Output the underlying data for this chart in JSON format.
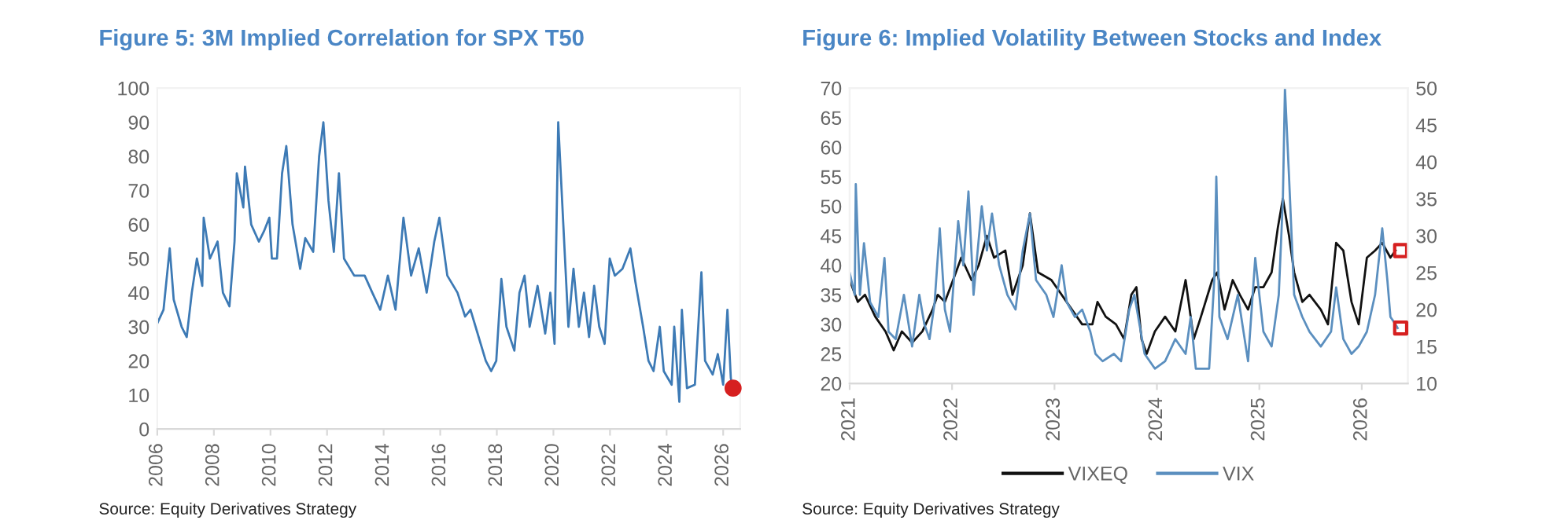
{
  "chart_data": [
    {
      "type": "line",
      "title": "Figure 5: 3M Implied Correlation for SPX T50",
      "annotations": [
        "Source: Equity Derivatives Strategy"
      ],
      "xlim": [
        2006,
        2026.6
      ],
      "xticks": [
        2006,
        2008,
        2010,
        2012,
        2014,
        2016,
        2018,
        2020,
        2022,
        2024,
        2026
      ],
      "ylim": [
        0,
        100
      ],
      "yticks": [
        0,
        10,
        20,
        30,
        40,
        50,
        60,
        70,
        80,
        90,
        100
      ],
      "grid": false,
      "legend": false,
      "series": [
        {
          "color": "#3d7ab5",
          "marker": "none",
          "x": [
            2006.0,
            2006.22,
            2006.44,
            2006.58,
            2006.86,
            2007.04,
            2007.22,
            2007.4,
            2007.59,
            2007.64,
            2007.86,
            2008.13,
            2008.32,
            2008.55,
            2008.73,
            2008.81,
            2009.04,
            2009.1,
            2009.32,
            2009.59,
            2009.77,
            2009.96,
            2010.05,
            2010.23,
            2010.41,
            2010.56,
            2010.78,
            2011.05,
            2011.23,
            2011.51,
            2011.72,
            2011.87,
            2012.05,
            2012.24,
            2012.42,
            2012.6,
            2012.96,
            2013.33,
            2013.6,
            2013.88,
            2014.15,
            2014.42,
            2014.7,
            2014.97,
            2015.24,
            2015.52,
            2015.79,
            2015.97,
            2016.25,
            2016.61,
            2016.88,
            2017.07,
            2017.25,
            2017.61,
            2017.8,
            2017.98,
            2018.16,
            2018.34,
            2018.62,
            2018.8,
            2018.98,
            2019.16,
            2019.44,
            2019.71,
            2019.89,
            2020.04,
            2020.17,
            2020.35,
            2020.53,
            2020.71,
            2020.9,
            2021.08,
            2021.26,
            2021.44,
            2021.62,
            2021.81,
            2021.99,
            2022.17,
            2022.44,
            2022.72,
            2022.9,
            2023.17,
            2023.36,
            2023.54,
            2023.76,
            2023.9,
            2024.18,
            2024.27,
            2024.45,
            2024.54,
            2024.72,
            2025.0,
            2025.23,
            2025.36,
            2025.63,
            2025.81,
            2026.0,
            2026.15,
            2026.27,
            2026.33
          ],
          "values": [
            31,
            35,
            53,
            38,
            30,
            27,
            40,
            50,
            42,
            62,
            50,
            55,
            40,
            36,
            55,
            75,
            65,
            77,
            60,
            55,
            58,
            62,
            50,
            50,
            75,
            83,
            60,
            47,
            56,
            52,
            80,
            90,
            67,
            52,
            75,
            50,
            45,
            45,
            40,
            35,
            45,
            35,
            62,
            45,
            53,
            40,
            55,
            62,
            45,
            40,
            33,
            35,
            30,
            20,
            17,
            20,
            44,
            30,
            23,
            40,
            45,
            30,
            42,
            28,
            40,
            25,
            90,
            60,
            30,
            47,
            30,
            40,
            27,
            42,
            30,
            25,
            50,
            45,
            47,
            53,
            43,
            30,
            20,
            17,
            30,
            17,
            13,
            30,
            8,
            35,
            12,
            13,
            46,
            20,
            16,
            22,
            13,
            35,
            15,
            12
          ]
        },
        {
          "type": "scatter",
          "color": "#d62020",
          "marker": "circle",
          "x": [
            2026.35
          ],
          "values": [
            12
          ]
        }
      ]
    },
    {
      "type": "line",
      "title": "Figure 6: Implied Volatility Between Stocks and Index",
      "annotations": [
        "Source: Equity Derivatives Strategy"
      ],
      "xlim": [
        2021,
        2026.45
      ],
      "xticks": [
        2021,
        2022,
        2023,
        2024,
        2025,
        2026
      ],
      "ylim": [
        20,
        70
      ],
      "yticks": [
        20,
        25,
        30,
        35,
        40,
        45,
        50,
        55,
        60,
        65,
        70
      ],
      "y2lim": [
        10,
        50
      ],
      "y2ticks": [
        10,
        15,
        20,
        25,
        30,
        35,
        40,
        45,
        50
      ],
      "grid": false,
      "legend": "bottom",
      "series": [
        {
          "name": "VIXEQ",
          "color": "#111111",
          "marker": "none",
          "x": [
            2021.0,
            2021.08,
            2021.15,
            2021.25,
            2021.35,
            2021.43,
            2021.51,
            2021.61,
            2021.71,
            2021.81,
            2021.86,
            2021.93,
            2022.01,
            2022.09,
            2022.19,
            2022.26,
            2022.34,
            2022.41,
            2022.52,
            2022.59,
            2022.69,
            2022.76,
            2022.84,
            2022.97,
            2023.07,
            2023.17,
            2023.27,
            2023.37,
            2023.42,
            2023.5,
            2023.6,
            2023.68,
            2023.75,
            2023.8,
            2023.85,
            2023.9,
            2023.98,
            2024.08,
            2024.18,
            2024.28,
            2024.36,
            2024.43,
            2024.54,
            2024.59,
            2024.66,
            2024.74,
            2024.81,
            2024.89,
            2024.96,
            2025.04,
            2025.12,
            2025.18,
            2025.23,
            2025.29,
            2025.34,
            2025.42,
            2025.49,
            2025.6,
            2025.67,
            2025.75,
            2025.82,
            2025.9,
            2025.97,
            2026.05,
            2026.13,
            2026.2,
            2026.28,
            2026.33
          ],
          "values": [
            37.5,
            33.8,
            35,
            31.3,
            28.8,
            25.6,
            28.8,
            26.9,
            28.8,
            32.5,
            35,
            33.8,
            37.5,
            41.3,
            37.5,
            40,
            45,
            41.3,
            42.5,
            35,
            40,
            48.8,
            38.8,
            37.5,
            35,
            32.5,
            30,
            30,
            33.8,
            31.3,
            30,
            27.5,
            35,
            36.3,
            27.5,
            25,
            28.8,
            31.3,
            28.8,
            37.5,
            27.5,
            31.3,
            37.5,
            38.8,
            32.5,
            37.5,
            35,
            32.5,
            36.3,
            36.3,
            38.8,
            46.3,
            51.3,
            45,
            38.8,
            33.8,
            35,
            32.5,
            30,
            43.8,
            42.5,
            33.8,
            30,
            41.3,
            42.5,
            43.8,
            41.3,
            42.5
          ]
        },
        {
          "name": "VIX",
          "color": "#5b8fbf",
          "marker": "none",
          "axis": "y2",
          "x": [
            2021.0,
            2021.05,
            2021.06,
            2021.1,
            2021.14,
            2021.2,
            2021.28,
            2021.34,
            2021.38,
            2021.45,
            2021.53,
            2021.61,
            2021.68,
            2021.73,
            2021.78,
            2021.83,
            2021.88,
            2021.93,
            2021.98,
            2022.06,
            2022.11,
            2022.16,
            2022.21,
            2022.29,
            2022.34,
            2022.39,
            2022.46,
            2022.54,
            2022.62,
            2022.69,
            2022.76,
            2022.82,
            2022.87,
            2022.92,
            2022.99,
            2023.07,
            2023.12,
            2023.2,
            2023.27,
            2023.35,
            2023.4,
            2023.47,
            2023.58,
            2023.65,
            2023.73,
            2023.78,
            2023.83,
            2023.88,
            2023.98,
            2024.08,
            2024.18,
            2024.28,
            2024.33,
            2024.38,
            2024.51,
            2024.56,
            2024.58,
            2024.61,
            2024.69,
            2024.79,
            2024.89,
            2024.96,
            2025.04,
            2025.12,
            2025.19,
            2025.23,
            2025.25,
            2025.29,
            2025.34,
            2025.42,
            2025.49,
            2025.6,
            2025.7,
            2025.75,
            2025.82,
            2025.9,
            2025.97,
            2026.05,
            2026.13,
            2026.2,
            2026.25,
            2026.28,
            2026.33,
            2026.35
          ],
          "values": [
            25,
            22,
            37,
            22,
            29,
            21,
            19,
            27,
            17,
            16,
            22,
            15,
            22,
            18,
            16,
            21,
            31,
            20,
            17,
            32,
            26,
            36,
            22,
            34,
            28,
            33,
            26,
            22,
            20,
            28,
            33,
            24,
            23,
            22,
            19,
            26,
            21,
            19,
            20,
            17,
            14,
            13,
            14,
            13,
            20,
            22,
            18,
            14,
            12,
            13,
            16,
            14,
            19,
            12,
            12,
            24,
            38,
            19,
            16,
            22,
            13,
            27,
            17,
            15,
            22,
            35,
            50,
            38,
            22,
            19,
            17,
            15,
            17,
            23,
            16,
            14,
            15,
            17,
            22,
            31,
            24,
            19,
            18,
            17.5
          ]
        },
        {
          "type": "scatter",
          "color": "#d62020",
          "marker": "square",
          "x": [
            2026.38
          ],
          "values": [
            42.5
          ]
        },
        {
          "type": "scatter",
          "color": "#d62020",
          "marker": "square",
          "axis": "y2",
          "x": [
            2026.38
          ],
          "values": [
            17.5
          ]
        }
      ]
    }
  ]
}
